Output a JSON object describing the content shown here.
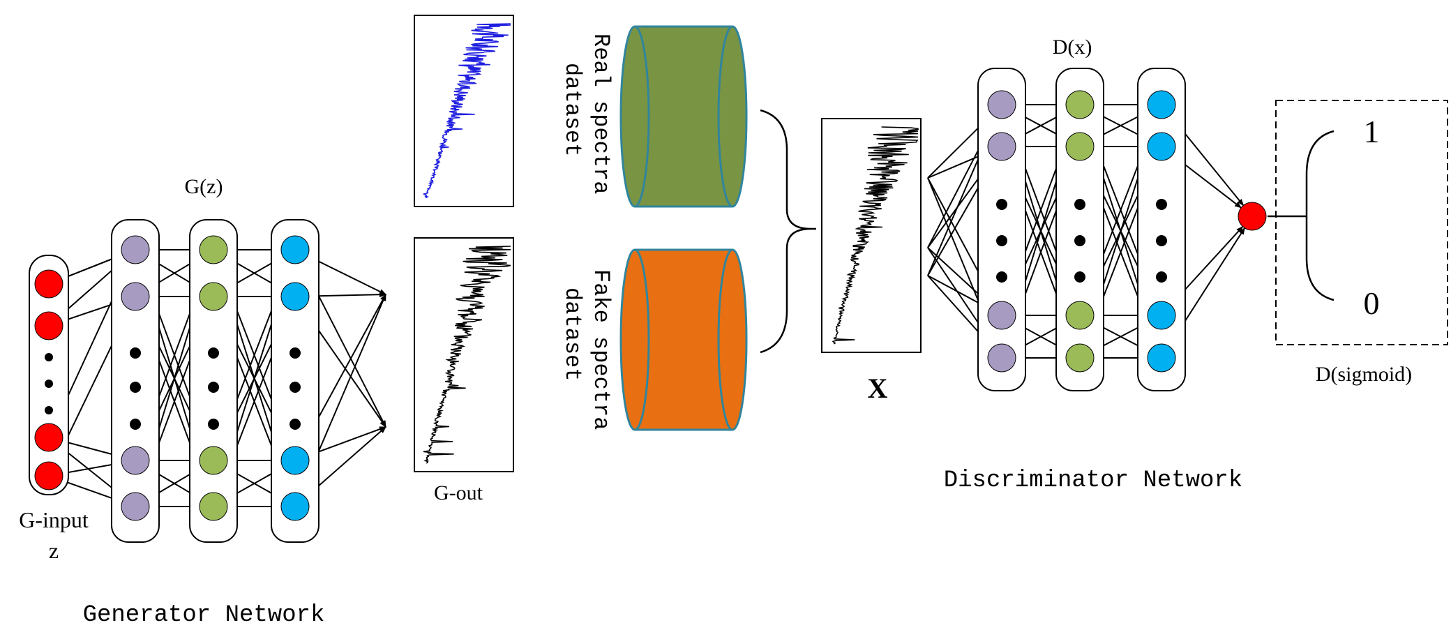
{
  "generator": {
    "input_label": "G-input",
    "input_var": "z",
    "network_label": "G(z)",
    "output_label": "G-out",
    "title": "Generator Network"
  },
  "datasets": {
    "real_line1": "Real spectra",
    "real_line2": "dataset",
    "fake_line1": "Fake spectra",
    "fake_line2": "dataset",
    "real_color": "#799443",
    "fake_color": "#e87012"
  },
  "discriminator": {
    "input_label": "X",
    "network_label": "D(x)",
    "title": "Discriminator Network",
    "output_label": "D(sigmoid)",
    "output_high": "1",
    "output_low": "0"
  },
  "colors": {
    "input_node": "#ff0000",
    "layer1_node": "#a89bc2",
    "layer2_node": "#9bbb59",
    "layer3_node": "#00b0f0",
    "output_node": "#ff0000",
    "spectrum_real": "#1f1fe0",
    "spectrum_fake": "#000000"
  }
}
